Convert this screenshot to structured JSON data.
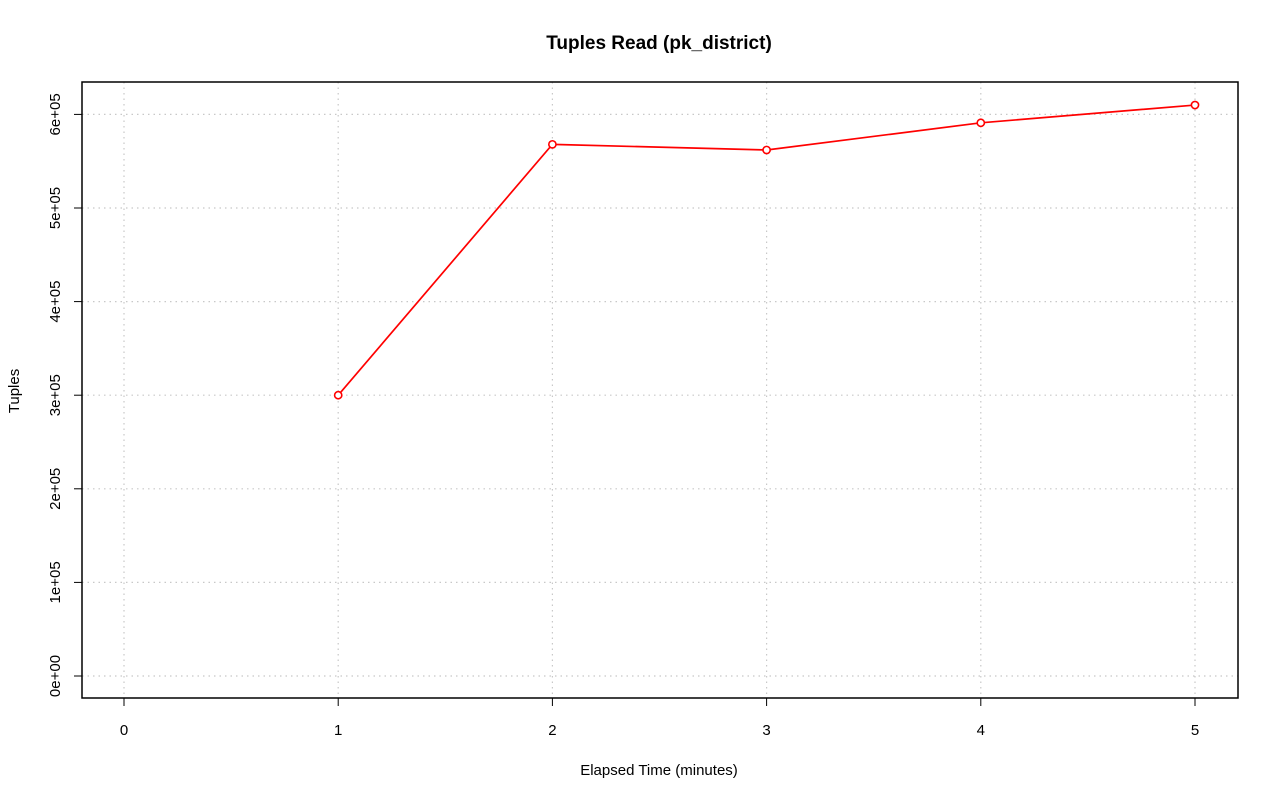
{
  "chart_data": {
    "type": "line",
    "title": "Tuples Read (pk_district)",
    "xlabel": "Elapsed Time (minutes)",
    "ylabel": "Tuples",
    "xlim": [
      0,
      5
    ],
    "ylim": [
      0,
      610000
    ],
    "x_ticks": [
      "0",
      "1",
      "2",
      "3",
      "4",
      "5"
    ],
    "y_ticks": [
      "0e+00",
      "1e+05",
      "2e+05",
      "3e+05",
      "4e+05",
      "5e+05",
      "6e+05"
    ],
    "grid": true,
    "series": [
      {
        "x": [
          1,
          2,
          3,
          4,
          5
        ],
        "values": [
          300000,
          568000,
          562000,
          591000,
          610000
        ],
        "color": "#ff0000",
        "marker": "open-circle"
      }
    ]
  }
}
